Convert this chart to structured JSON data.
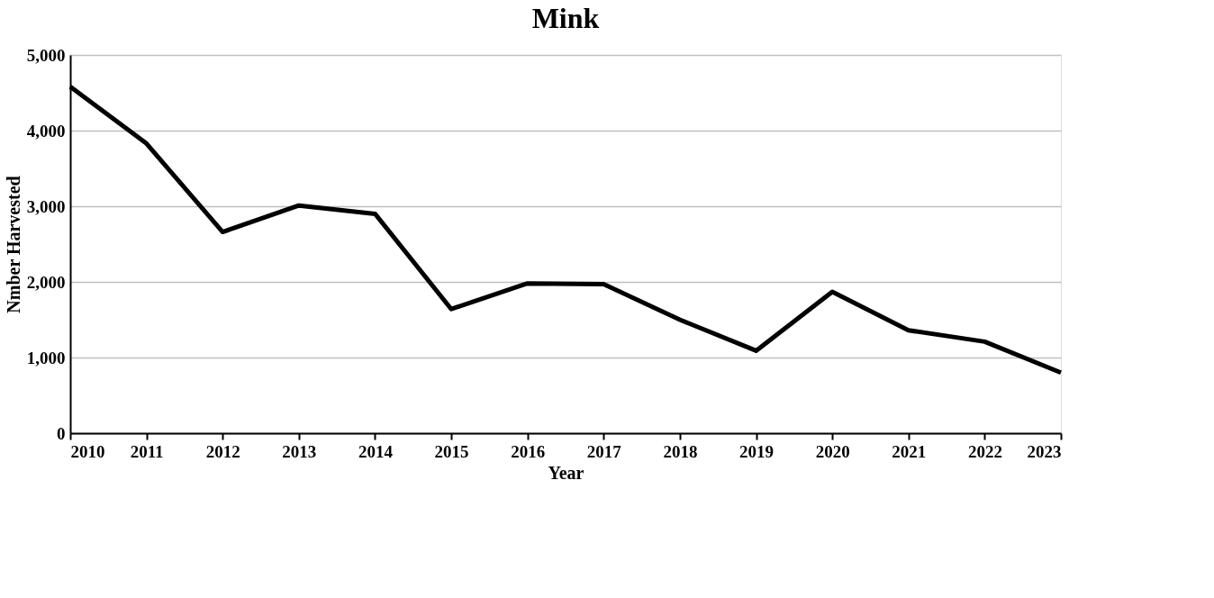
{
  "chart_data": {
    "type": "line",
    "title": "Mink",
    "xlabel": "Year",
    "ylabel": "Nmber Harvested",
    "categories": [
      "2010",
      "2011",
      "2012",
      "2013",
      "2014",
      "2015",
      "2016",
      "2017",
      "2018",
      "2019",
      "2020",
      "2021",
      "2022",
      "2023"
    ],
    "series": [
      {
        "color": "#000000",
        "values": [
          4580,
          3830,
          2660,
          3010,
          2900,
          1640,
          1980,
          1970,
          1500,
          1090,
          1870,
          1360,
          1210,
          800
        ]
      }
    ],
    "ylim": [
      0,
      5000
    ],
    "yticks": [
      0,
      {
        "value": 1000,
        "label": "1,000"
      },
      {
        "value": 2000,
        "label": "2,000"
      },
      {
        "value": 3000,
        "label": "3,000"
      },
      {
        "value": 4000,
        "label": "4,000"
      },
      {
        "value": 5000,
        "label": "5,000"
      }
    ],
    "grid": "y",
    "legend": false,
    "marker": "none",
    "line_style": "solid"
  }
}
